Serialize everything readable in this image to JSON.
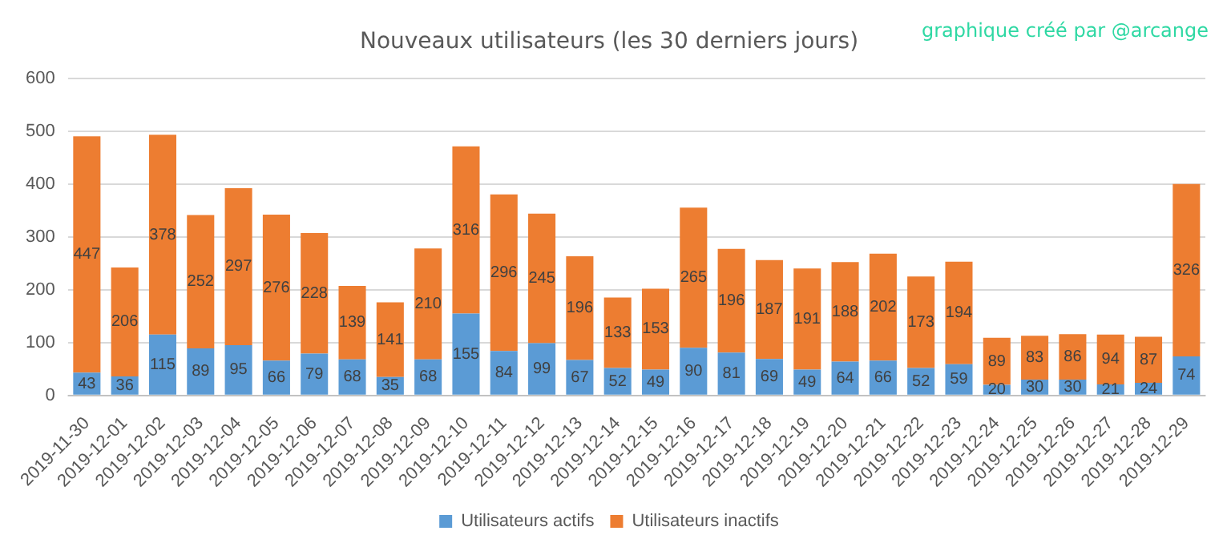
{
  "chart_data": {
    "type": "bar",
    "title": "Nouveaux utilisateurs (les 30 derniers jours)",
    "annotations": [
      "graphique créé par @arcange"
    ],
    "categories": [
      "2019-11-30",
      "2019-12-01",
      "2019-12-02",
      "2019-12-03",
      "2019-12-04",
      "2019-12-05",
      "2019-12-06",
      "2019-12-07",
      "2019-12-08",
      "2019-12-09",
      "2019-12-10",
      "2019-12-11",
      "2019-12-12",
      "2019-12-13",
      "2019-12-14",
      "2019-12-15",
      "2019-12-16",
      "2019-12-17",
      "2019-12-18",
      "2019-12-19",
      "2019-12-20",
      "2019-12-21",
      "2019-12-22",
      "2019-12-23",
      "2019-12-24",
      "2019-12-25",
      "2019-12-26",
      "2019-12-27",
      "2019-12-28",
      "2019-12-29"
    ],
    "series": [
      {
        "name": "Utilisateurs actifs",
        "color": "#5b9bd5",
        "values": [
          43,
          36,
          115,
          89,
          95,
          66,
          79,
          68,
          35,
          68,
          155,
          84,
          99,
          67,
          52,
          49,
          90,
          81,
          69,
          49,
          64,
          66,
          52,
          59,
          20,
          30,
          30,
          21,
          24,
          74
        ]
      },
      {
        "name": "Utilisateurs inactifs",
        "color": "#ed7d31",
        "values": [
          447,
          206,
          378,
          252,
          297,
          276,
          228,
          139,
          141,
          210,
          316,
          296,
          245,
          196,
          133,
          153,
          265,
          196,
          187,
          191,
          188,
          202,
          173,
          194,
          89,
          83,
          86,
          94,
          87,
          326
        ]
      }
    ],
    "stacked": true,
    "ylim": [
      0,
      600
    ],
    "yticks": [
      0,
      100,
      200,
      300,
      400,
      500,
      600
    ],
    "grid": "y",
    "legend": "bottom",
    "data_labels": true
  }
}
